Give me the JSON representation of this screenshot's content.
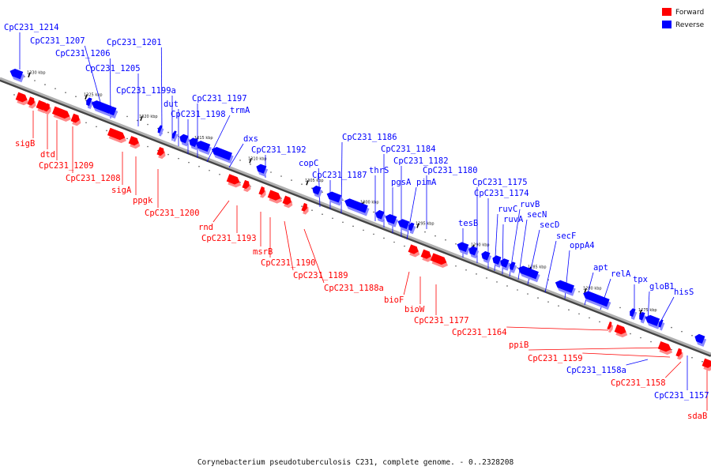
{
  "caption": "Corynebacterium pseudotuberculosis C231, complete genome. - 0..2328208",
  "legend": [
    {
      "label": "Forward",
      "color": "#ff0000"
    },
    {
      "label": "Reverse",
      "color": "#0000ff"
    }
  ],
  "colors": {
    "forward": "#ff0000",
    "reverse": "#0000ff",
    "forward_shade": "#ff8a8a",
    "reverse_shade": "#8a8aff",
    "backbone": "#8a8a8a"
  },
  "ticks": [
    "1330 kbp",
    "1325 kbp",
    "1320 kbp",
    "1315 kbp",
    "1310 kbp",
    "1305 kbp",
    "1300 kbp",
    "1295 kbp",
    "1290 kbp",
    "1285 kbp",
    "1280 kbp",
    "1275 kbp"
  ],
  "genes_reverse": [
    "CpC231_1214",
    "CpC231_1207",
    "CpC231_1206",
    "CpC231_1201",
    "CpC231_1205",
    "CpC231_1199a",
    "dut",
    "CpC231_1198",
    "CpC231_1197",
    "trmA",
    "dxs",
    "CpC231_1192",
    "copC",
    "CpC231_1187",
    "CpC231_1186",
    "thrS",
    "CpC231_1184",
    "pgsA",
    "CpC231_1182",
    "pimA",
    "CpC231_1180",
    "tesB",
    "CpC231_1175",
    "CpC231_1174",
    "ruvC",
    "ruvA",
    "ruvB",
    "secN",
    "secD",
    "secF",
    "oppA4",
    "apt",
    "relA",
    "tpx",
    "gloB1",
    "hisS",
    "CpC231_1158a",
    "CpC231_1157"
  ],
  "genes_forward": [
    "sigB",
    "dtd",
    "CpC231_1209",
    "CpC231_1208",
    "sigA",
    "ppgk",
    "CpC231_1200",
    "rnd",
    "CpC231_1193",
    "msrB",
    "CpC231_1190",
    "CpC231_1189",
    "CpC231_1188a",
    "bioF",
    "bioW",
    "CpC231_1177",
    "CpC231_1164",
    "ppiB",
    "CpC231_1159",
    "CpC231_1158",
    "sdaB"
  ]
}
